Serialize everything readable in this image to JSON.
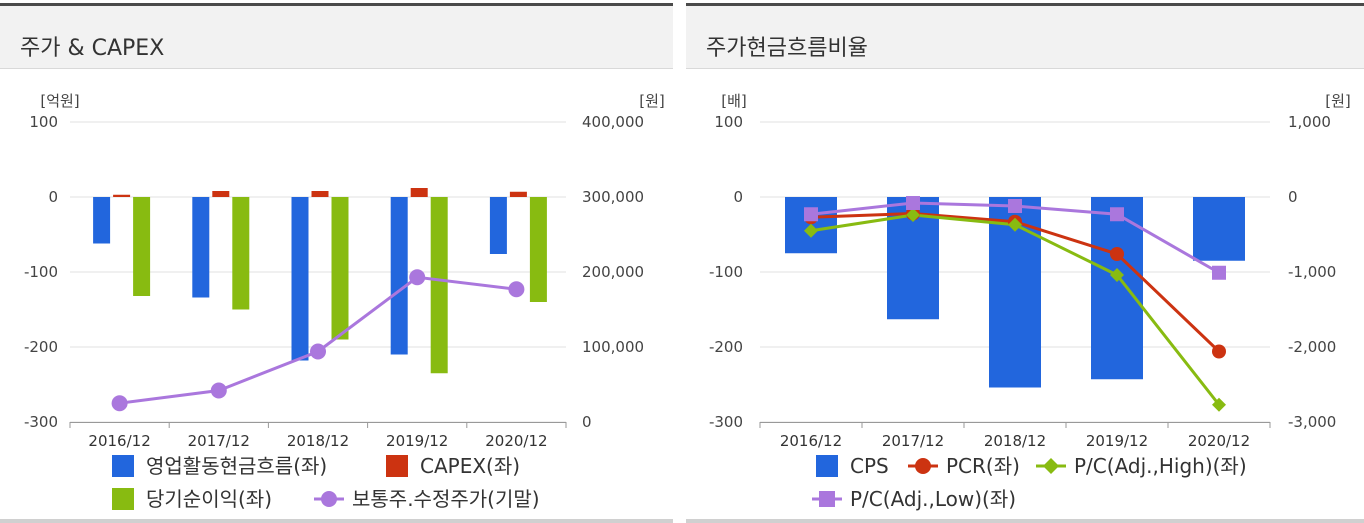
{
  "left": {
    "title": "주가 & CAPEX",
    "chart_data": {
      "type": "bar",
      "categories": [
        "2016/12",
        "2017/12",
        "2018/12",
        "2019/12",
        "2020/12"
      ],
      "y_left": {
        "unit": "[억원]",
        "ylim": [
          -300,
          100
        ],
        "ticks": [
          "100",
          "0",
          "-100",
          "-200",
          "-300"
        ]
      },
      "y_right": {
        "unit": "[원]",
        "ylim": [
          0,
          400000
        ],
        "ticks": [
          "400,000",
          "300,000",
          "200,000",
          "100,000",
          "0"
        ]
      },
      "grid": true,
      "legend_position": "bottom",
      "series": [
        {
          "name": "영업활동현금흐름(좌)",
          "type": "bar",
          "axis": "left",
          "color": "#2266dd",
          "values": [
            -62,
            -134,
            -218,
            -210,
            -76
          ]
        },
        {
          "name": "CAPEX(좌)",
          "type": "bar",
          "axis": "left",
          "color": "#cc3311",
          "values": [
            3,
            8,
            8,
            12,
            7
          ]
        },
        {
          "name": "당기순이익(좌)",
          "type": "bar",
          "axis": "left",
          "color": "#88bb11",
          "values": [
            -132,
            -150,
            -190,
            -235,
            -140
          ]
        },
        {
          "name": "보통주.수정주가(기말)",
          "type": "line",
          "axis": "right",
          "color": "#aa77dd",
          "values": [
            25000,
            42000,
            94000,
            193000,
            177000
          ]
        }
      ]
    }
  },
  "right": {
    "title": "주가현금흐름비율",
    "chart_data": {
      "type": "bar",
      "categories": [
        "2016/12",
        "2017/12",
        "2018/12",
        "2019/12",
        "2020/12"
      ],
      "y_left": {
        "unit": "[배]",
        "ylim": [
          -300,
          100
        ],
        "ticks": [
          "100",
          "0",
          "-100",
          "-200",
          "-300"
        ]
      },
      "y_right": {
        "unit": "[원]",
        "ylim": [
          -3000,
          1000
        ],
        "ticks": [
          "1,000",
          "0",
          "-1,000",
          "-2,000",
          "-3,000"
        ]
      },
      "grid": true,
      "legend_position": "bottom",
      "series": [
        {
          "name": "CPS",
          "type": "bar",
          "axis": "right",
          "color": "#2266dd",
          "marker": "square",
          "values": [
            -750,
            -1630,
            -2540,
            -2430,
            -850
          ]
        },
        {
          "name": "PCR(좌)",
          "type": "line",
          "axis": "left",
          "color": "#cc3311",
          "marker": "circle",
          "values": [
            -27,
            -22,
            -33,
            -76,
            -206
          ]
        },
        {
          "name": "P/C(Adj.,High)(좌)",
          "type": "line",
          "axis": "left",
          "color": "#88bb11",
          "marker": "diamond",
          "values": [
            -45,
            -24,
            -37,
            -104,
            -277
          ]
        },
        {
          "name": "P/C(Adj.,Low)(좌)",
          "type": "line",
          "axis": "left",
          "color": "#aa77dd",
          "marker": "square",
          "values": [
            -23,
            -8,
            -12,
            -23,
            -101
          ]
        }
      ]
    }
  }
}
